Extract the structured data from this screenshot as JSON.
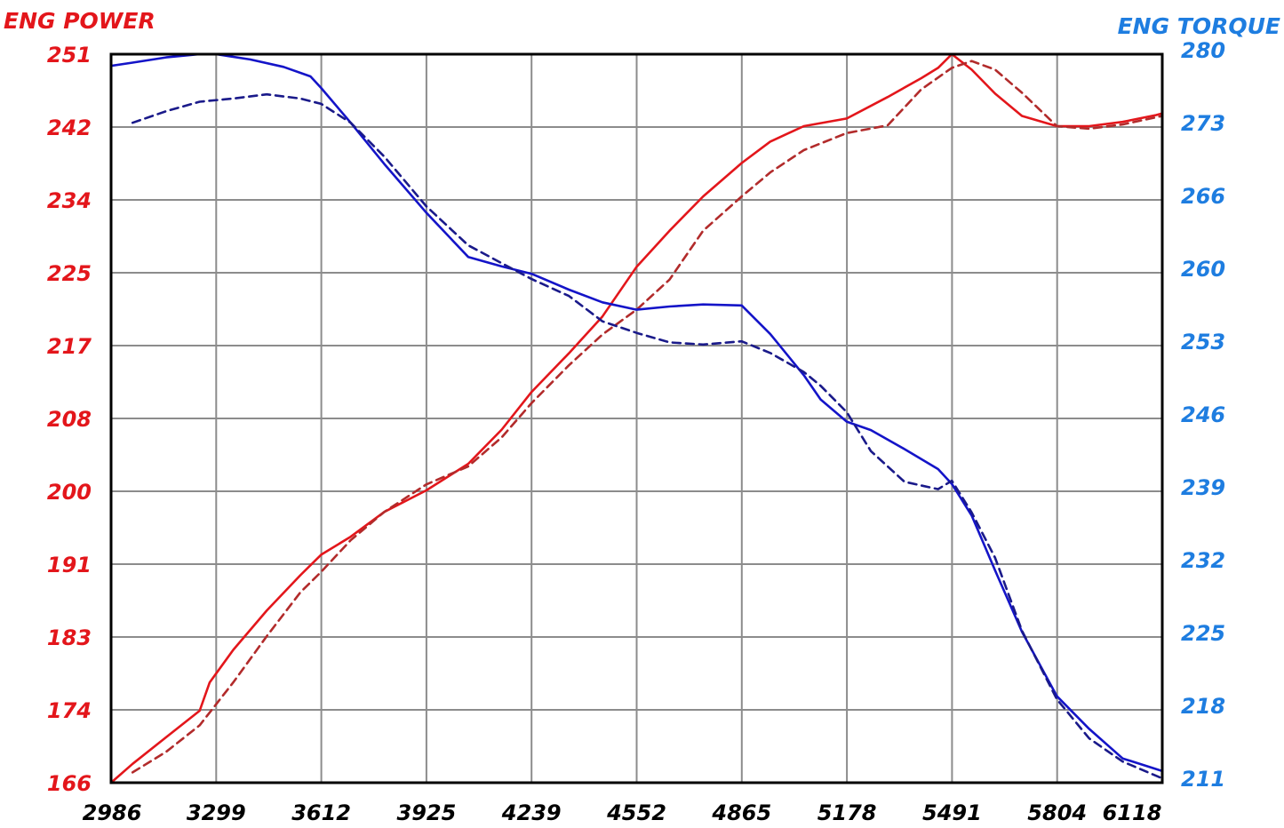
{
  "chart_data": {
    "type": "line",
    "left_axis": {
      "title": "ENG POWER",
      "color": "#e3161b",
      "ylim": [
        166,
        251
      ],
      "ticks": [
        "251",
        "242",
        "234",
        "225",
        "217",
        "208",
        "200",
        "191",
        "183",
        "174",
        "166"
      ]
    },
    "right_axis": {
      "title": "ENG TORQUE",
      "color": "#1e7de0",
      "ylim": [
        211,
        280
      ],
      "ticks": [
        "280",
        "273",
        "266",
        "260",
        "253",
        "246",
        "239",
        "232",
        "225",
        "218",
        "211"
      ]
    },
    "x_axis": {
      "xlim": [
        2986,
        6118
      ],
      "ticks": [
        "2986",
        "3299",
        "3612",
        "3925",
        "4239",
        "4552",
        "4865",
        "5178",
        "5491",
        "5804",
        "6118"
      ]
    },
    "grid": true,
    "legend": "none",
    "series": [
      {
        "axis": "left",
        "style": "solid",
        "color": "#e3161b",
        "x": [
          2986,
          3050,
          3150,
          3250,
          3280,
          3350,
          3450,
          3550,
          3612,
          3700,
          3800,
          3925,
          4050,
          4150,
          4239,
          4350,
          4450,
          4552,
          4650,
          4750,
          4865,
          4950,
          5050,
          5178,
          5300,
          5400,
          5450,
          5491,
          5550,
          5620,
          5700,
          5804,
          5900,
          6000,
          6100,
          6118
        ],
        "y": [
          166,
          168.2,
          171.3,
          174.4,
          177.7,
          181.5,
          186.1,
          190.2,
          192.6,
          194.7,
          197.6,
          200.1,
          203.2,
          207.2,
          211.6,
          216.1,
          220.4,
          226.2,
          230.4,
          234.4,
          238.3,
          240.8,
          242.6,
          243.5,
          246,
          248.2,
          249.4,
          251,
          249.2,
          246.4,
          243.8,
          242.6,
          242.6,
          243.1,
          243.9,
          244.1
        ]
      },
      {
        "axis": "left",
        "style": "dashed",
        "color": "#b22b2b",
        "x": [
          3050,
          3150,
          3250,
          3350,
          3450,
          3550,
          3612,
          3700,
          3800,
          3925,
          4050,
          4150,
          4239,
          4350,
          4450,
          4552,
          4650,
          4750,
          4865,
          4950,
          5050,
          5178,
          5300,
          5400,
          5491,
          5550,
          5620,
          5700,
          5804,
          5900,
          6000,
          6118
        ],
        "y": [
          167.2,
          169.6,
          172.7,
          177.7,
          183.1,
          188.2,
          190.6,
          194.3,
          197.6,
          200.8,
          202.9,
          206.3,
          210.3,
          214.7,
          218.3,
          221.2,
          224.7,
          230.4,
          234.4,
          237.2,
          239.8,
          241.8,
          242.7,
          246.9,
          249.4,
          250.2,
          249.2,
          246.5,
          242.6,
          242.3,
          242.8,
          243.8
        ]
      },
      {
        "axis": "right",
        "style": "solid",
        "color": "#1414c8",
        "x": [
          2986,
          3050,
          3150,
          3250,
          3299,
          3400,
          3500,
          3580,
          3612,
          3700,
          3800,
          3925,
          4050,
          4150,
          4239,
          4350,
          4450,
          4552,
          4650,
          4750,
          4865,
          4950,
          5050,
          5100,
          5178,
          5250,
          5350,
          5450,
          5491,
          5550,
          5620,
          5700,
          5804,
          5900,
          6000,
          6118
        ],
        "y": [
          278.9,
          279.2,
          279.7,
          280,
          280,
          279.5,
          278.8,
          277.9,
          276.8,
          273.5,
          269.6,
          265,
          260.8,
          259.9,
          259.2,
          257.7,
          256.5,
          255.8,
          256.1,
          256.3,
          256.2,
          253.5,
          249.6,
          247.3,
          245.2,
          244.4,
          242.6,
          240.7,
          239.3,
          236.3,
          231.1,
          225.3,
          219.2,
          216.1,
          213.3,
          212.1
        ]
      },
      {
        "axis": "right",
        "style": "dashed",
        "color": "#1a1a8a",
        "x": [
          3050,
          3150,
          3250,
          3350,
          3450,
          3550,
          3612,
          3700,
          3800,
          3925,
          4050,
          4150,
          4239,
          4350,
          4450,
          4552,
          4650,
          4750,
          4865,
          4950,
          5050,
          5100,
          5178,
          5250,
          5350,
          5450,
          5491,
          5550,
          5620,
          5700,
          5804,
          5900,
          6000,
          6118
        ],
        "y": [
          273.5,
          274.6,
          275.5,
          275.8,
          276.2,
          275.8,
          275.3,
          273.5,
          270.3,
          265.6,
          261.9,
          260.2,
          258.7,
          257.1,
          254.7,
          253.6,
          252.7,
          252.5,
          252.8,
          251.7,
          249.9,
          248.6,
          246.1,
          242.4,
          239.5,
          238.8,
          239.6,
          236.6,
          232.3,
          225.4,
          218.9,
          215.2,
          213,
          211.4
        ]
      }
    ]
  }
}
